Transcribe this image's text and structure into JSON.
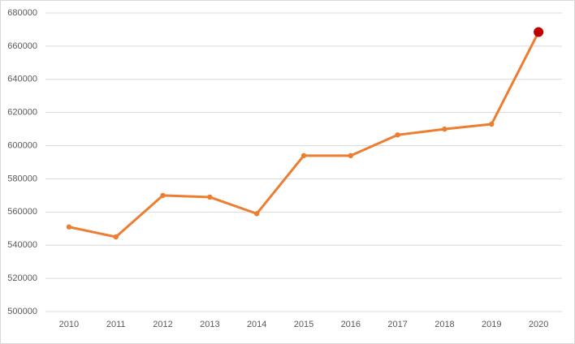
{
  "chart_data": {
    "type": "line",
    "categories": [
      "2010",
      "2011",
      "2012",
      "2013",
      "2014",
      "2015",
      "2016",
      "2017",
      "2018",
      "2019",
      "2020"
    ],
    "series": [
      {
        "color": "#ed7d31",
        "values": [
          551000,
          545000,
          570000,
          569000,
          559000,
          594000,
          594000,
          606500,
          610000,
          613000,
          668500
        ],
        "marker_colors": [
          "#ed7d31",
          "#ed7d31",
          "#ed7d31",
          "#ed7d31",
          "#ed7d31",
          "#ed7d31",
          "#ed7d31",
          "#ed7d31",
          "#ed7d31",
          "#ed7d31",
          "#c00000"
        ]
      }
    ],
    "ylim": [
      500000,
      680000
    ],
    "yticks": [
      500000,
      520000,
      540000,
      560000,
      580000,
      600000,
      620000,
      640000,
      660000,
      680000
    ],
    "grid": true
  }
}
